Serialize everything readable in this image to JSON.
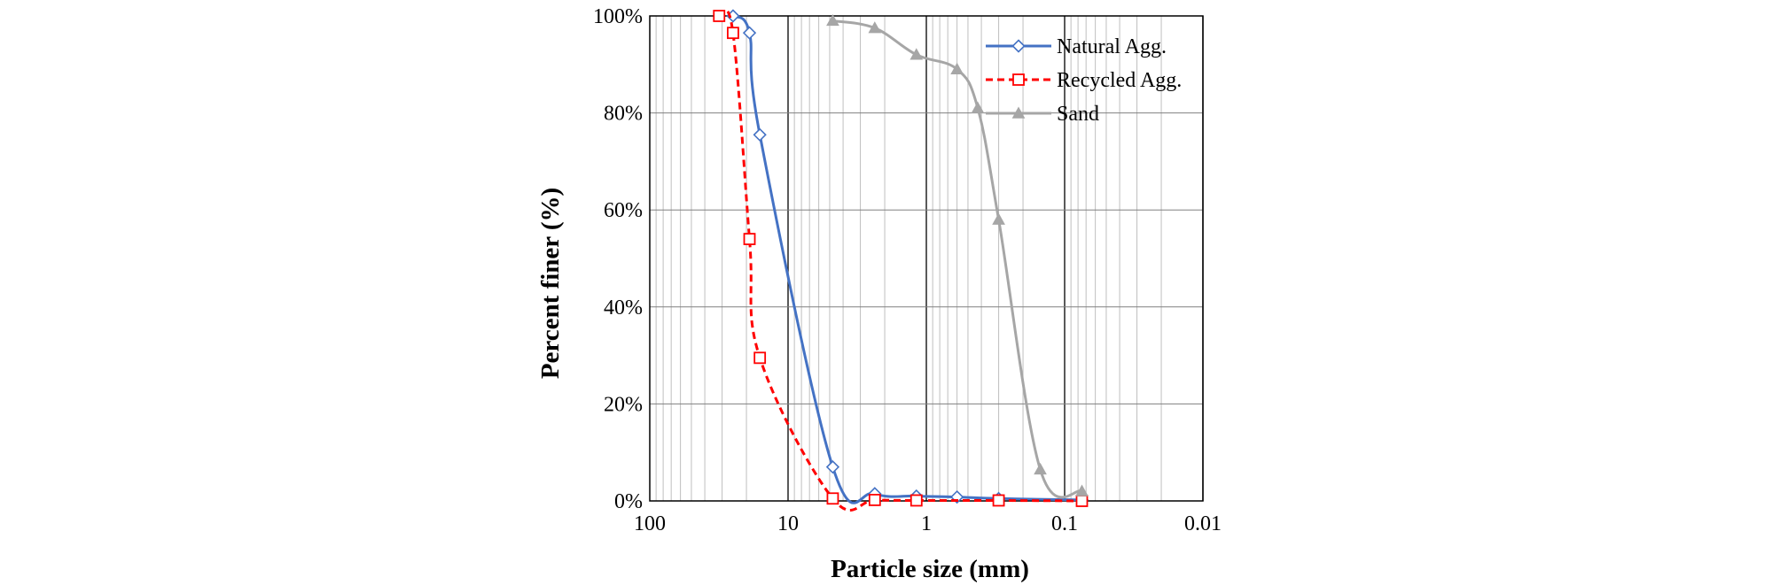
{
  "chart_data": {
    "type": "line",
    "xlabel": "Particle size (mm)",
    "ylabel": "Percent finer (%)",
    "xscale": "log",
    "x_reversed": true,
    "xlim": [
      100,
      0.01
    ],
    "ylim": [
      0,
      100
    ],
    "grid": true,
    "legend_position": "top-right",
    "x_ticks": [
      "100",
      "10",
      "1",
      "0.1",
      "0.01"
    ],
    "y_ticks": [
      "0%",
      "20%",
      "40%",
      "60%",
      "80%",
      "100%"
    ],
    "series": [
      {
        "name": "Natural Agg.",
        "color": "#4472c4",
        "line_style": "solid",
        "marker": "diamond",
        "x": [
          25,
          19,
          16,
          4.75,
          2.36,
          1.18,
          0.6,
          0.3,
          0.075
        ],
        "y": [
          100,
          96.5,
          75.5,
          7,
          1.5,
          1,
          0.8,
          0.5,
          0.2
        ]
      },
      {
        "name": "Recycled Agg.",
        "color": "#ff0000",
        "line_style": "dashed",
        "marker": "square",
        "x": [
          31.5,
          25,
          19,
          16,
          4.75,
          2.36,
          1.18,
          0.3,
          0.075
        ],
        "y": [
          100,
          96.5,
          54,
          29.5,
          0.5,
          0.2,
          0.1,
          0.1,
          0
        ]
      },
      {
        "name": "Sand",
        "color": "#a6a6a6",
        "line_style": "solid",
        "marker": "triangle",
        "x": [
          4.75,
          2.36,
          1.18,
          0.6,
          0.425,
          0.3,
          0.15,
          0.075
        ],
        "y": [
          99,
          97.5,
          92,
          89,
          81,
          58,
          6.5,
          2
        ]
      }
    ]
  }
}
